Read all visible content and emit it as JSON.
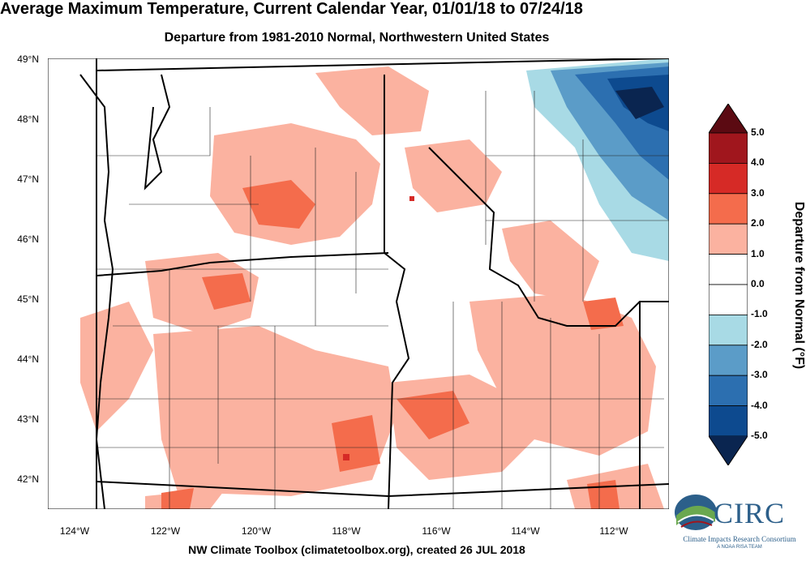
{
  "title": "Average Maximum Temperature, Current Calendar Year, 01/01/18 to 07/24/18",
  "subtitle": "Departure from 1981-2010 Normal, Northwestern United States",
  "lat_labels": [
    "49°N",
    "48°N",
    "47°N",
    "46°N",
    "45°N",
    "44°N",
    "43°N",
    "42°N"
  ],
  "lon_labels": [
    "124°W",
    "122°W",
    "120°W",
    "118°W",
    "116°W",
    "114°W",
    "112°W"
  ],
  "colorbar": {
    "title": "Departure from Normal (°F)",
    "ticks": [
      "5.0",
      "4.0",
      "3.0",
      "2.0",
      "1.0",
      "0.0",
      "-1.0",
      "-2.0",
      "-3.0",
      "-4.0",
      "-5.0"
    ],
    "colors": [
      "#5b0a12",
      "#a0161d",
      "#d62a26",
      "#f46c4c",
      "#fbb2a0",
      "#ffffff",
      "#ffffff",
      "#a8dae5",
      "#5b9cc8",
      "#2c6fb0",
      "#0d4a8f",
      "#0a2550"
    ]
  },
  "footer": "NW Climate Toolbox (climatetoolbox.org), created 26 JUL 2018",
  "logo": {
    "name": "CIRC",
    "full_name": "Climate Impacts Research Consortium",
    "team": "A NOAA RISA TEAM"
  }
}
